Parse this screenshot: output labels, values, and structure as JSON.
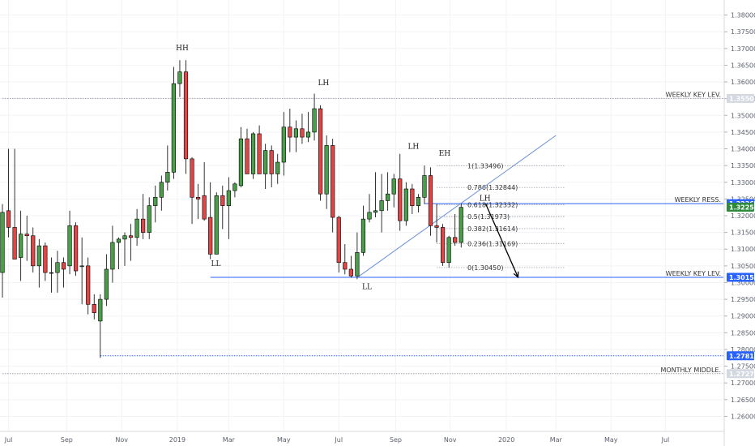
{
  "chart_data": {
    "type": "candlestick",
    "y_axis": {
      "position": "right",
      "ylim": [
        1.2555,
        1.3845
      ],
      "ticks": [
        "1.26000",
        "1.26500",
        "1.27000",
        "1.27500",
        "1.28000",
        "1.28500",
        "1.29000",
        "1.29500",
        "1.30000",
        "1.30500",
        "1.31000",
        "1.31500",
        "1.32000",
        "1.32500",
        "1.33000",
        "1.33500",
        "1.34000",
        "1.34500",
        "1.35000",
        "1.35500",
        "1.36000",
        "1.36500",
        "1.37000",
        "1.37500",
        "1.38000"
      ]
    },
    "x_axis": {
      "labels": [
        {
          "text": "Jul",
          "bar": 1
        },
        {
          "text": "Sep",
          "bar": 10.5
        },
        {
          "text": "Nov",
          "bar": 19.5
        },
        {
          "text": "2019",
          "bar": 28.6
        },
        {
          "text": "Mar",
          "bar": 37
        },
        {
          "text": "May",
          "bar": 46
        },
        {
          "text": "Jul",
          "bar": 55
        },
        {
          "text": "Sep",
          "bar": 64.3
        },
        {
          "text": "Nov",
          "bar": 73.2
        },
        {
          "text": "2020",
          "bar": 82.4
        },
        {
          "text": "Mar",
          "bar": 90.5
        },
        {
          "text": "May",
          "bar": 99.5
        },
        {
          "text": "Jul",
          "bar": 108.4
        }
      ]
    },
    "bull_color": "#4a9e4a",
    "bear_color": "#e04646",
    "candles": [
      {
        "o": 1.303,
        "h": 1.3235,
        "l": 1.2955,
        "c": 1.321
      },
      {
        "o": 1.3215,
        "h": 1.34,
        "l": 1.3135,
        "c": 1.3165
      },
      {
        "o": 1.3165,
        "h": 1.34,
        "l": 1.3075,
        "c": 1.307
      },
      {
        "o": 1.3075,
        "h": 1.3215,
        "l": 1.3005,
        "c": 1.3145
      },
      {
        "o": 1.3145,
        "h": 1.32,
        "l": 1.3065,
        "c": 1.314
      },
      {
        "o": 1.314,
        "h": 1.3165,
        "l": 1.303,
        "c": 1.305
      },
      {
        "o": 1.305,
        "h": 1.313,
        "l": 1.2985,
        "c": 1.311
      },
      {
        "o": 1.311,
        "h": 1.312,
        "l": 1.3005,
        "c": 1.303
      },
      {
        "o": 1.303,
        "h": 1.3075,
        "l": 1.297,
        "c": 1.303
      },
      {
        "o": 1.303,
        "h": 1.3095,
        "l": 1.297,
        "c": 1.306
      },
      {
        "o": 1.306,
        "h": 1.3075,
        "l": 1.2985,
        "c": 1.304
      },
      {
        "o": 1.305,
        "h": 1.3215,
        "l": 1.3025,
        "c": 1.317
      },
      {
        "o": 1.317,
        "h": 1.318,
        "l": 1.302,
        "c": 1.3035
      },
      {
        "o": 1.305,
        "h": 1.3135,
        "l": 1.2935,
        "c": 1.305
      },
      {
        "o": 1.305,
        "h": 1.3075,
        "l": 1.2905,
        "c": 1.2935
      },
      {
        "o": 1.2935,
        "h": 1.2965,
        "l": 1.289,
        "c": 1.291
      },
      {
        "o": 1.2885,
        "h": 1.2965,
        "l": 1.2775,
        "c": 1.295
      },
      {
        "o": 1.295,
        "h": 1.3085,
        "l": 1.293,
        "c": 1.304
      },
      {
        "o": 1.304,
        "h": 1.317,
        "l": 1.3,
        "c": 1.312
      },
      {
        "o": 1.312,
        "h": 1.3135,
        "l": 1.304,
        "c": 1.313
      },
      {
        "o": 1.313,
        "h": 1.315,
        "l": 1.305,
        "c": 1.314
      },
      {
        "o": 1.314,
        "h": 1.3175,
        "l": 1.3065,
        "c": 1.3135
      },
      {
        "o": 1.3135,
        "h": 1.322,
        "l": 1.311,
        "c": 1.319
      },
      {
        "o": 1.319,
        "h": 1.3265,
        "l": 1.313,
        "c": 1.315
      },
      {
        "o": 1.315,
        "h": 1.3255,
        "l": 1.313,
        "c": 1.323
      },
      {
        "o": 1.323,
        "h": 1.329,
        "l": 1.318,
        "c": 1.3255
      },
      {
        "o": 1.3255,
        "h": 1.332,
        "l": 1.3215,
        "c": 1.33
      },
      {
        "o": 1.33,
        "h": 1.341,
        "l": 1.3275,
        "c": 1.333
      },
      {
        "o": 1.333,
        "h": 1.3645,
        "l": 1.331,
        "c": 1.3595
      },
      {
        "o": 1.3595,
        "h": 1.3665,
        "l": 1.3555,
        "c": 1.363
      },
      {
        "o": 1.363,
        "h": 1.3665,
        "l": 1.3325,
        "c": 1.337
      },
      {
        "o": 1.337,
        "h": 1.3375,
        "l": 1.3175,
        "c": 1.3255
      },
      {
        "o": 1.3255,
        "h": 1.3295,
        "l": 1.319,
        "c": 1.325
      },
      {
        "o": 1.326,
        "h": 1.336,
        "l": 1.3185,
        "c": 1.319
      },
      {
        "o": 1.3195,
        "h": 1.33,
        "l": 1.307,
        "c": 1.3085
      },
      {
        "o": 1.3085,
        "h": 1.327,
        "l": 1.3085,
        "c": 1.326
      },
      {
        "o": 1.326,
        "h": 1.329,
        "l": 1.316,
        "c": 1.323
      },
      {
        "o": 1.323,
        "h": 1.3315,
        "l": 1.313,
        "c": 1.3275
      },
      {
        "o": 1.3275,
        "h": 1.33,
        "l": 1.3255,
        "c": 1.3295
      },
      {
        "o": 1.329,
        "h": 1.3465,
        "l": 1.3285,
        "c": 1.343
      },
      {
        "o": 1.343,
        "h": 1.346,
        "l": 1.333,
        "c": 1.3325
      },
      {
        "o": 1.3325,
        "h": 1.345,
        "l": 1.331,
        "c": 1.3445
      },
      {
        "o": 1.3445,
        "h": 1.347,
        "l": 1.3325,
        "c": 1.3325
      },
      {
        "o": 1.3325,
        "h": 1.3415,
        "l": 1.328,
        "c": 1.3395
      },
      {
        "o": 1.3395,
        "h": 1.341,
        "l": 1.3285,
        "c": 1.3325
      },
      {
        "o": 1.3325,
        "h": 1.3385,
        "l": 1.3295,
        "c": 1.336
      },
      {
        "o": 1.336,
        "h": 1.351,
        "l": 1.332,
        "c": 1.3465
      },
      {
        "o": 1.3465,
        "h": 1.352,
        "l": 1.339,
        "c": 1.3435
      },
      {
        "o": 1.3435,
        "h": 1.3485,
        "l": 1.339,
        "c": 1.346
      },
      {
        "o": 1.346,
        "h": 1.3505,
        "l": 1.3415,
        "c": 1.3435
      },
      {
        "o": 1.3435,
        "h": 1.351,
        "l": 1.342,
        "c": 1.345
      },
      {
        "o": 1.345,
        "h": 1.3565,
        "l": 1.3425,
        "c": 1.352
      },
      {
        "o": 1.352,
        "h": 1.353,
        "l": 1.3245,
        "c": 1.3265
      },
      {
        "o": 1.3265,
        "h": 1.344,
        "l": 1.322,
        "c": 1.341
      },
      {
        "o": 1.341,
        "h": 1.343,
        "l": 1.315,
        "c": 1.3195
      },
      {
        "o": 1.3195,
        "h": 1.32,
        "l": 1.303,
        "c": 1.306
      },
      {
        "o": 1.306,
        "h": 1.3115,
        "l": 1.3025,
        "c": 1.304
      },
      {
        "o": 1.304,
        "h": 1.308,
        "l": 1.3015,
        "c": 1.302
      },
      {
        "o": 1.302,
        "h": 1.315,
        "l": 1.301,
        "c": 1.309
      },
      {
        "o": 1.309,
        "h": 1.323,
        "l": 1.308,
        "c": 1.319
      },
      {
        "o": 1.319,
        "h": 1.3265,
        "l": 1.318,
        "c": 1.321
      },
      {
        "o": 1.321,
        "h": 1.333,
        "l": 1.3195,
        "c": 1.3215
      },
      {
        "o": 1.3215,
        "h": 1.3325,
        "l": 1.315,
        "c": 1.3245
      },
      {
        "o": 1.3245,
        "h": 1.333,
        "l": 1.3215,
        "c": 1.3265
      },
      {
        "o": 1.3265,
        "h": 1.3325,
        "l": 1.3225,
        "c": 1.331
      },
      {
        "o": 1.331,
        "h": 1.3385,
        "l": 1.3155,
        "c": 1.3185
      },
      {
        "o": 1.3185,
        "h": 1.33,
        "l": 1.317,
        "c": 1.328
      },
      {
        "o": 1.328,
        "h": 1.3295,
        "l": 1.3205,
        "c": 1.323
      },
      {
        "o": 1.323,
        "h": 1.3265,
        "l": 1.321,
        "c": 1.3255
      },
      {
        "o": 1.3255,
        "h": 1.335,
        "l": 1.3235,
        "c": 1.332
      },
      {
        "o": 1.332,
        "h": 1.3345,
        "l": 1.314,
        "c": 1.317
      },
      {
        "o": 1.317,
        "h": 1.3235,
        "l": 1.312,
        "c": 1.3165
      },
      {
        "o": 1.3165,
        "h": 1.3175,
        "l": 1.305,
        "c": 1.306
      },
      {
        "o": 1.306,
        "h": 1.314,
        "l": 1.3045,
        "c": 1.3135
      },
      {
        "o": 1.3135,
        "h": 1.3205,
        "l": 1.311,
        "c": 1.312
      },
      {
        "o": 1.312,
        "h": 1.3236,
        "l": 1.3105,
        "c": 1.3225
      }
    ],
    "horizontal_levels": [
      {
        "label": "WEEKLY KEY LEV.",
        "price": 1.35508,
        "tag": "1.35508",
        "tag_color": "#d4d8e0",
        "tag_text_color": "#222222",
        "line_color": "#9aa0aa",
        "style": "dotted",
        "from_bar": 0
      },
      {
        "label": "WEEKLY RESS.",
        "price": 1.32362,
        "tag": "1.32362",
        "tag_color": "#2962ff",
        "line_color": "#2962ff",
        "style": "solid",
        "from_bar": 69
      },
      {
        "label": "",
        "price": 1.32254,
        "tag": "1.32254",
        "tag_color": "#2e8b3d",
        "line_color": "",
        "style": "none",
        "from_bar": 0
      },
      {
        "label": "WEEKLY KEY LEV.",
        "price": 1.30157,
        "tag": "1.30157",
        "tag_color": "#2962ff",
        "line_color": "#2962ff",
        "style": "solid",
        "from_bar": 34
      },
      {
        "label": "",
        "price": 1.27811,
        "tag": "1.27811",
        "tag_color": "#2962ff",
        "line_color": "#2962ff",
        "style": "dotted",
        "from_bar": 16
      },
      {
        "label": "MONTHLY MIDDLE.",
        "price": 1.27277,
        "tag": "1.27277",
        "tag_color": "#d4d8e0",
        "tag_text_color": "#222222",
        "line_color": "#9aa0aa",
        "style": "dotted",
        "from_bar": 0
      }
    ],
    "fib_levels": [
      {
        "label": "1(1.33496)",
        "price": 1.33496
      },
      {
        "label": "0.786(1.32844)",
        "price": 1.32844
      },
      {
        "label": "0.618(1.32332)",
        "price": 1.32332
      },
      {
        "label": "0.5(1.31973)",
        "price": 1.31973
      },
      {
        "label": "0.382(1.31614)",
        "price": 1.31614
      },
      {
        "label": "0.236(1.31169)",
        "price": 1.31169
      },
      {
        "label": "0(1.30450)",
        "price": 1.3045
      }
    ],
    "fib_from_bar": 71,
    "fib_to_bar": 92,
    "trendline": {
      "from": {
        "bar": 58,
        "price": 1.3015
      },
      "to": {
        "bar": 90.5,
        "price": 1.344
      },
      "color": "#6a8fd8"
    },
    "arrow": {
      "from": {
        "bar": 79,
        "price": 1.3236
      },
      "to": {
        "bar": 84.3,
        "price": 1.3016
      },
      "color": "#000000"
    },
    "swing_labels": [
      {
        "text": "HH",
        "bar": 29.4,
        "price": 1.3695
      },
      {
        "text": "LH",
        "bar": 52.5,
        "price": 1.359
      },
      {
        "text": "LL",
        "bar": 34.9,
        "price": 1.305
      },
      {
        "text": "LL",
        "bar": 59.6,
        "price": 1.298
      },
      {
        "text": "LH",
        "bar": 67.2,
        "price": 1.34
      },
      {
        "text": "EH",
        "bar": 72.3,
        "price": 1.338
      },
      {
        "text": "LH",
        "bar": 78.9,
        "price": 1.3245
      }
    ]
  }
}
